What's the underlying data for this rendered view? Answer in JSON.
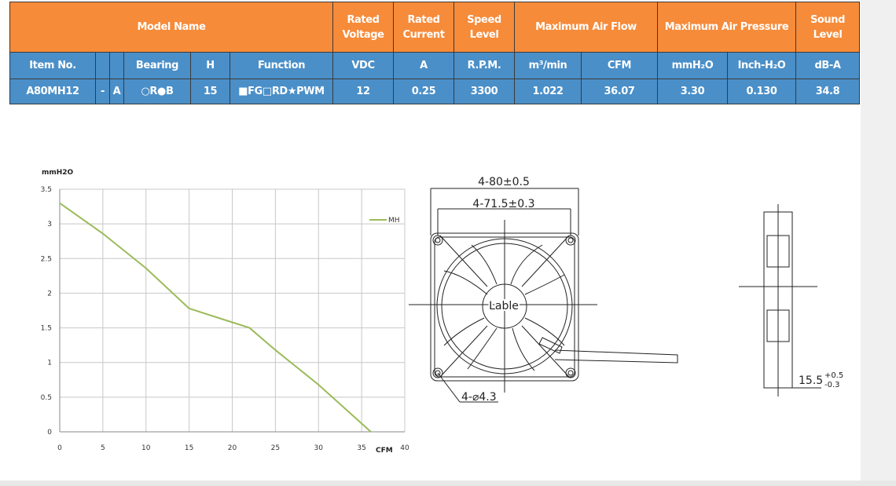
{
  "table": {
    "header_row1": [
      "Model Name",
      "Rated Voltage",
      "Rated Current",
      "Speed Level",
      "Maximum Air Flow",
      "Maximum Air Pressure",
      "Sound Level"
    ],
    "header_row2": [
      "Item No.",
      "Bearing",
      "H",
      "Function",
      "VDC",
      "A",
      "R.P.M.",
      "m³/min",
      "CFM",
      "mmH₂O",
      "Inch-H₂O",
      "dB-A"
    ],
    "data_row": [
      "A80MH12",
      "-",
      "A",
      "○R●B",
      "15",
      "■FG□RD★PWM",
      "12",
      "0.25",
      "3300",
      "1.022",
      "36.07",
      "3.30",
      "0.130",
      "34.8"
    ]
  },
  "chart_data": {
    "type": "line",
    "x_label": "CFM",
    "y_label": "mmH2O",
    "x": [
      0,
      5,
      10,
      15,
      20,
      22,
      25,
      30,
      36.07
    ],
    "series": [
      {
        "name": "MH",
        "color": "#9bbb59",
        "values": [
          3.3,
          2.86,
          2.36,
          1.78,
          1.58,
          1.5,
          1.18,
          0.68,
          0
        ]
      }
    ],
    "xlim": [
      0,
      40
    ],
    "xticks": [
      0,
      5,
      10,
      15,
      20,
      25,
      30,
      35,
      40
    ],
    "ylim": [
      0,
      3.5
    ],
    "yticks": [
      0,
      0.5,
      1,
      1.5,
      2,
      2.5,
      3,
      3.5
    ],
    "grid": true,
    "legend": "top-right"
  },
  "drawing": {
    "overall_dim": "4-80±0.5",
    "hole_pitch": "4-71.5±0.3",
    "center_label": "Lable",
    "hole_dia": "4-⌀4.3",
    "thickness": "15.5",
    "tol_upper": "+0.5",
    "tol_lower": "-0.3"
  }
}
